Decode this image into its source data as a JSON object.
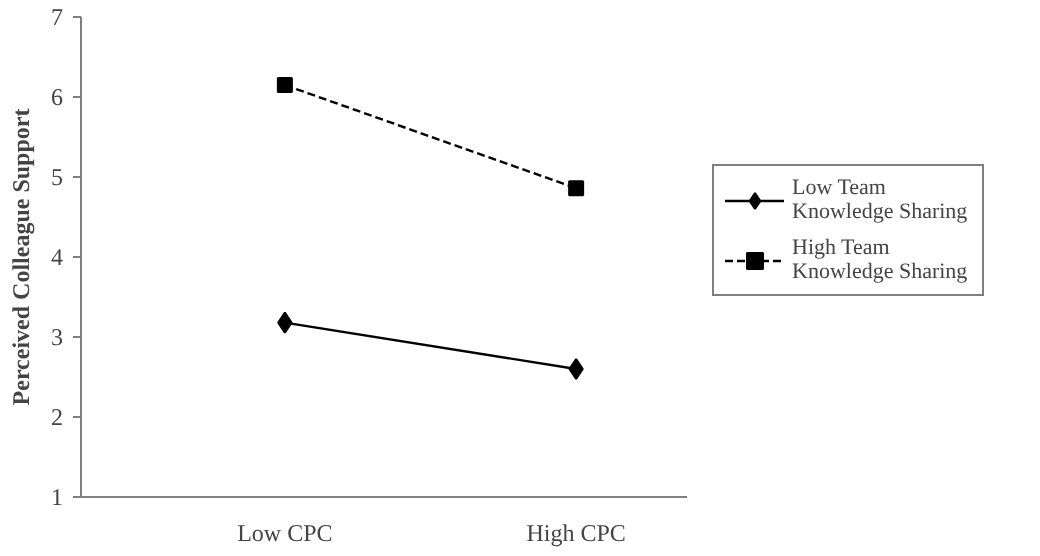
{
  "chart_data": {
    "type": "line",
    "ylabel": "Perceived Colleague Support",
    "categories": [
      "Low CPC",
      "High CPC"
    ],
    "ylim": [
      1,
      7
    ],
    "yticks": [
      1,
      2,
      3,
      4,
      5,
      6,
      7
    ],
    "grid": false,
    "legend": "right",
    "series": [
      {
        "name": "Low Team Knowledge Sharing",
        "color": "#000000",
        "values": [
          3.18,
          2.6
        ],
        "marker": "diamond",
        "line_style": "solid"
      },
      {
        "name": "High Team Knowledge Sharing",
        "color": "#000000",
        "values": [
          6.15,
          4.86
        ],
        "marker": "square",
        "line_style": "dashed"
      }
    ]
  }
}
